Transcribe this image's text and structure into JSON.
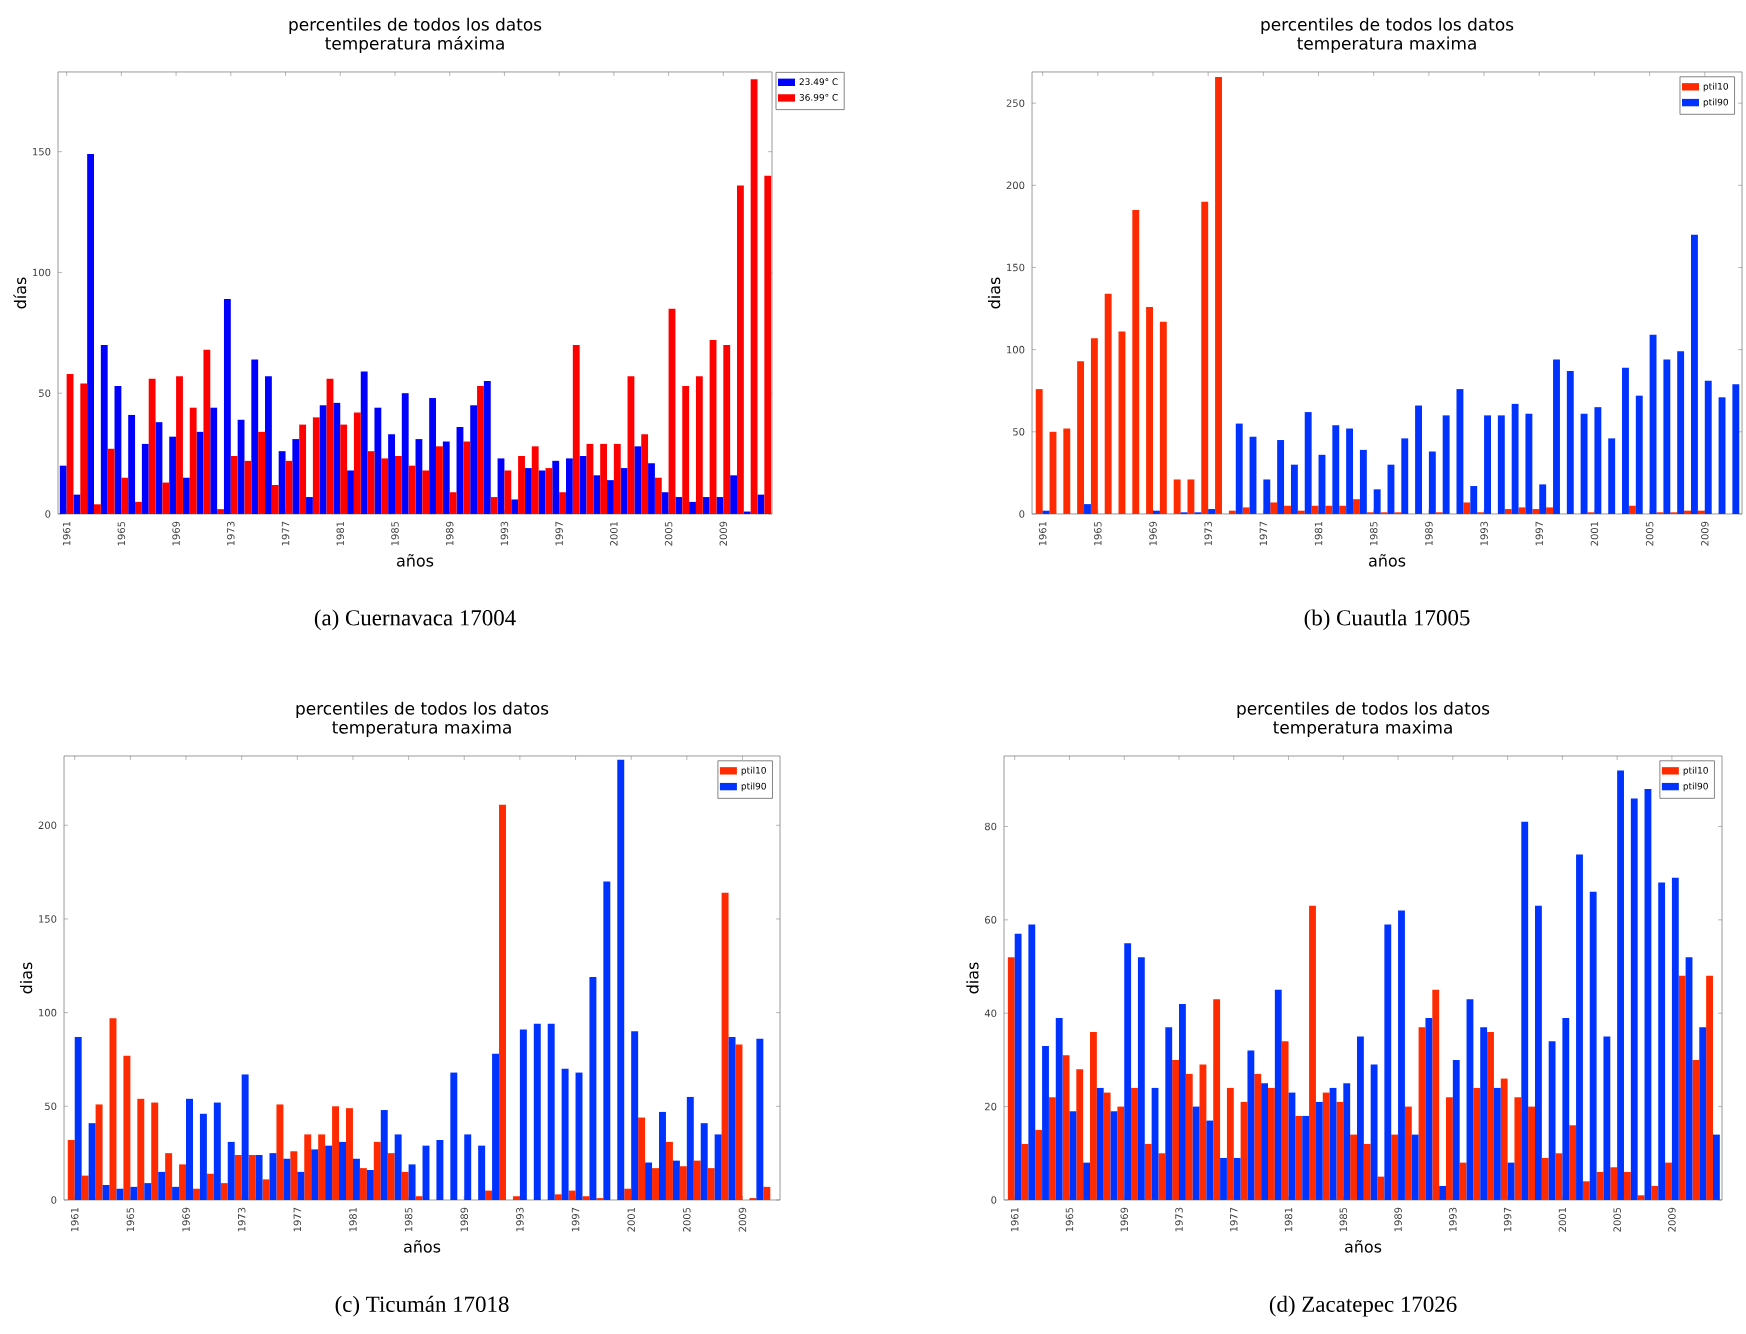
{
  "chart_data": [
    {
      "type": "bar",
      "title": "percentiles de todos los datos",
      "subtitle": "temperatura máxima",
      "xlabel": "años",
      "ylabel": "días",
      "annotations": [
        "(a) Cuernavaca 17004"
      ],
      "x": [
        1961,
        1962,
        1963,
        1964,
        1965,
        1966,
        1967,
        1968,
        1969,
        1970,
        1971,
        1972,
        1973,
        1974,
        1975,
        1976,
        1977,
        1978,
        1979,
        1980,
        1981,
        1982,
        1983,
        1984,
        1985,
        1986,
        1987,
        1988,
        1989,
        1990,
        1991,
        1992,
        1993,
        1994,
        1995,
        1996,
        1997,
        1998,
        1999,
        2000,
        2001,
        2002,
        2003,
        2004,
        2005,
        2006,
        2007,
        2008,
        2009,
        2010,
        2011,
        2012
      ],
      "xlim": [
        1960.37,
        2012.56
      ],
      "xticks": [
        1961,
        1965,
        1969,
        1973,
        1977,
        1981,
        1985,
        1989,
        1993,
        1997,
        2001,
        2005,
        2009
      ],
      "ylim": [
        0,
        183
      ],
      "yticks": [
        0,
        50,
        100,
        150
      ],
      "legend": "right",
      "series": [
        {
          "name": "23.49° C",
          "color": "#0000ff",
          "values": [
            20,
            8,
            149,
            70,
            53,
            41,
            29,
            38,
            32,
            15,
            34,
            44,
            89,
            39,
            64,
            57,
            26,
            31,
            7,
            45,
            46,
            18,
            59,
            44,
            33,
            50,
            31,
            48,
            30,
            36,
            45,
            55,
            23,
            6,
            19,
            18,
            22,
            23,
            24,
            16,
            14,
            19,
            28,
            21,
            9,
            7,
            5,
            7,
            7,
            16,
            1,
            8
          ]
        },
        {
          "name": "36.99° C",
          "color": "#ff0000",
          "values": [
            58,
            54,
            4,
            27,
            15,
            5,
            56,
            13,
            57,
            44,
            68,
            2,
            24,
            22,
            34,
            12,
            22,
            37,
            40,
            56,
            37,
            42,
            26,
            23,
            24,
            20,
            18,
            28,
            9,
            30,
            53,
            7,
            18,
            24,
            28,
            19,
            9,
            70,
            29,
            29,
            29,
            57,
            33,
            15,
            85,
            53,
            57,
            72,
            70,
            136,
            180,
            140
          ]
        }
      ]
    },
    {
      "type": "bar",
      "title": "percentiles de todos los datos",
      "subtitle": "temperatura maxima",
      "xlabel": "años",
      "ylabel": "dias",
      "annotations": [
        "(b) Cuautla 17005"
      ],
      "x": [
        1961,
        1962,
        1963,
        1964,
        1965,
        1966,
        1967,
        1968,
        1969,
        1970,
        1971,
        1972,
        1973,
        1974,
        1975,
        1976,
        1977,
        1978,
        1979,
        1980,
        1981,
        1982,
        1983,
        1984,
        1985,
        1986,
        1987,
        1988,
        1989,
        1990,
        1991,
        1992,
        1993,
        1994,
        1995,
        1996,
        1997,
        1998,
        1999,
        2000,
        2001,
        2002,
        2003,
        2004,
        2005,
        2006,
        2007,
        2008,
        2009,
        2010,
        2011
      ],
      "xlim": [
        1960.23,
        2011.7
      ],
      "xticks": [
        1961,
        1965,
        1969,
        1973,
        1977,
        1981,
        1985,
        1989,
        1993,
        1997,
        2001,
        2005,
        2009
      ],
      "ylim": [
        0,
        269
      ],
      "yticks": [
        0,
        50,
        100,
        150,
        200,
        250
      ],
      "legend": "top right",
      "series": [
        {
          "name": "ptil10",
          "color": "#ff2a00",
          "values": [
            76,
            50,
            52,
            93,
            107,
            134,
            111,
            185,
            126,
            117,
            21,
            21,
            190,
            266,
            2,
            4,
            0,
            7,
            5,
            2,
            5,
            5,
            5,
            9,
            1,
            1,
            1,
            0,
            0,
            1,
            0,
            7,
            1,
            0,
            3,
            4,
            3,
            4,
            0,
            0,
            1,
            0,
            0,
            5,
            0,
            1,
            1,
            2,
            2,
            0,
            0
          ]
        },
        {
          "name": "ptil90",
          "color": "#0033ff",
          "values": [
            2,
            0,
            0,
            6,
            0,
            0,
            0,
            0,
            2,
            0,
            1,
            1,
            3,
            0,
            55,
            47,
            21,
            45,
            30,
            62,
            36,
            54,
            52,
            39,
            15,
            30,
            46,
            66,
            38,
            60,
            76,
            17,
            60,
            60,
            67,
            61,
            18,
            94,
            87,
            61,
            65,
            46,
            89,
            72,
            109,
            94,
            99,
            170,
            81,
            71,
            79
          ]
        }
      ]
    },
    {
      "type": "bar",
      "title": "percentiles de todos los datos",
      "subtitle": "temperatura maxima",
      "xlabel": "años",
      "ylabel": "dias",
      "annotations": [
        "(c) Ticumán 17018"
      ],
      "x": [
        1961,
        1962,
        1963,
        1964,
        1965,
        1966,
        1967,
        1968,
        1969,
        1970,
        1971,
        1972,
        1973,
        1974,
        1975,
        1976,
        1977,
        1978,
        1979,
        1980,
        1981,
        1982,
        1983,
        1984,
        1985,
        1986,
        1987,
        1988,
        1989,
        1990,
        1991,
        1992,
        1993,
        1994,
        1995,
        1996,
        1997,
        1998,
        1999,
        2000,
        2001,
        2002,
        2003,
        2004,
        2005,
        2006,
        2007,
        2008,
        2009,
        2010,
        2011
      ],
      "xlim": [
        1960.23,
        2011.7
      ],
      "xticks": [
        1961,
        1965,
        1969,
        1973,
        1977,
        1981,
        1985,
        1989,
        1993,
        1997,
        2001,
        2005,
        2009
      ],
      "ylim": [
        0,
        237
      ],
      "yticks": [
        0,
        50,
        100,
        150,
        200
      ],
      "legend": "top right",
      "series": [
        {
          "name": "ptil10",
          "color": "#ff2a00",
          "values": [
            32,
            13,
            51,
            97,
            77,
            54,
            52,
            25,
            19,
            6,
            14,
            9,
            24,
            24,
            11,
            51,
            26,
            35,
            35,
            50,
            49,
            17,
            31,
            25,
            15,
            2,
            0,
            0,
            0,
            0,
            5,
            211,
            2,
            0,
            0,
            3,
            5,
            2,
            1,
            0,
            6,
            44,
            17,
            31,
            18,
            21,
            17,
            164,
            83,
            1,
            7
          ]
        },
        {
          "name": "ptil90",
          "color": "#0033ff",
          "values": [
            87,
            41,
            8,
            6,
            7,
            9,
            15,
            7,
            54,
            46,
            52,
            31,
            67,
            24,
            25,
            22,
            15,
            27,
            29,
            31,
            22,
            16,
            48,
            35,
            19,
            29,
            32,
            68,
            35,
            29,
            78,
            0,
            91,
            94,
            94,
            70,
            68,
            119,
            170,
            235,
            90,
            20,
            47,
            21,
            55,
            41,
            35,
            87,
            0,
            86,
            0
          ]
        }
      ]
    },
    {
      "type": "bar",
      "title": "percentiles de todos los datos",
      "subtitle": "temperatura maxima",
      "xlabel": "años",
      "ylabel": "dias",
      "annotations": [
        "(d) Zacatepec 17026"
      ],
      "x": [
        1961,
        1962,
        1963,
        1964,
        1965,
        1966,
        1967,
        1968,
        1969,
        1970,
        1971,
        1972,
        1973,
        1974,
        1975,
        1976,
        1977,
        1978,
        1979,
        1980,
        1981,
        1982,
        1983,
        1984,
        1985,
        1986,
        1987,
        1988,
        1989,
        1990,
        1991,
        1992,
        1993,
        1994,
        1995,
        1996,
        1997,
        1998,
        1999,
        2000,
        2001,
        2002,
        2003,
        2004,
        2005,
        2006,
        2007,
        2008,
        2009,
        2010,
        2011,
        2012
      ],
      "xlim": [
        1960.22,
        2012.66
      ],
      "xticks": [
        1961,
        1965,
        1969,
        1973,
        1977,
        1981,
        1985,
        1989,
        1993,
        1997,
        2001,
        2005,
        2009
      ],
      "ylim": [
        0,
        95.1
      ],
      "yticks": [
        0,
        20,
        40,
        60,
        80
      ],
      "legend": "top right",
      "series": [
        {
          "name": "ptil10",
          "color": "#ff2a00",
          "values": [
            52,
            12,
            15,
            22,
            31,
            28,
            36,
            23,
            20,
            24,
            12,
            10,
            30,
            27,
            29,
            43,
            24,
            21,
            27,
            24,
            34,
            18,
            63,
            23,
            21,
            14,
            12,
            5,
            14,
            20,
            37,
            45,
            22,
            8,
            24,
            36,
            26,
            22,
            20,
            9,
            10,
            16,
            4,
            6,
            7,
            6,
            1,
            3,
            8,
            48,
            30,
            48
          ]
        },
        {
          "name": "ptil90",
          "color": "#0033ff",
          "values": [
            57,
            59,
            33,
            39,
            19,
            8,
            24,
            19,
            55,
            52,
            24,
            37,
            42,
            20,
            17,
            9,
            9,
            32,
            25,
            45,
            23,
            18,
            21,
            24,
            25,
            35,
            29,
            59,
            62,
            14,
            39,
            3,
            30,
            43,
            37,
            24,
            8,
            81,
            63,
            34,
            39,
            74,
            66,
            35,
            92,
            86,
            88,
            68,
            69,
            52,
            37,
            14
          ]
        }
      ]
    }
  ]
}
